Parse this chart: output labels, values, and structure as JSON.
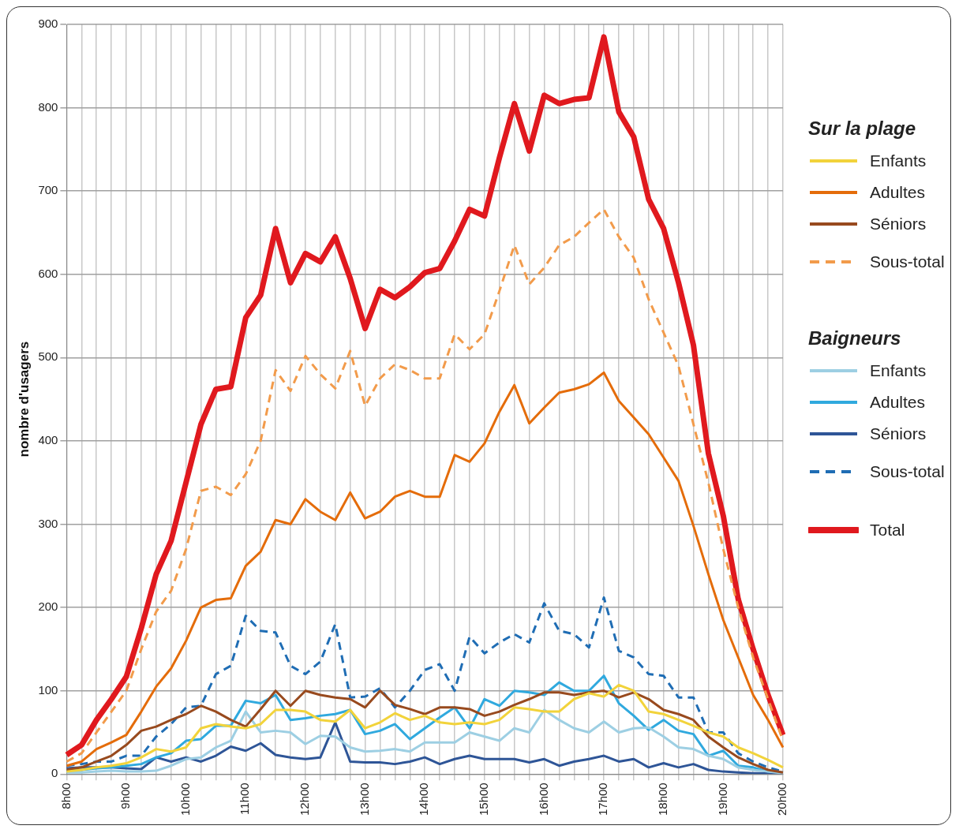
{
  "chart_data": {
    "type": "line",
    "ylabel": "nombre d'usagers",
    "categories": [
      "8h00",
      null,
      null,
      null,
      "9h00",
      null,
      null,
      null,
      "10h00",
      null,
      null,
      null,
      "11h00",
      null,
      null,
      null,
      "12h00",
      null,
      null,
      null,
      "13h00",
      null,
      null,
      null,
      "14h00",
      null,
      null,
      null,
      "15h00",
      null,
      null,
      null,
      "16h00",
      null,
      null,
      null,
      "17h00",
      null,
      null,
      null,
      "18h00",
      null,
      null,
      null,
      "19h00",
      null,
      null,
      null,
      "20h00"
    ],
    "ylim": [
      0,
      900
    ],
    "yticks": [
      0,
      100,
      200,
      300,
      400,
      500,
      600,
      700,
      800,
      900
    ],
    "grid": true,
    "legend": "right",
    "marker": "none",
    "line_style": "solid",
    "annotations": [
      "Sur la plage",
      "Baigneurs"
    ],
    "series": [
      {
        "name": "Enfants",
        "color": "#f2d33b",
        "values": [
          3,
          5,
          8,
          10,
          13,
          20,
          30,
          27,
          32,
          55,
          60,
          57,
          55,
          60,
          77,
          77,
          75,
          65,
          63,
          77,
          55,
          62,
          73,
          65,
          70,
          62,
          60,
          62,
          60,
          65,
          80,
          78,
          75,
          75,
          90,
          97,
          93,
          107,
          100,
          75,
          72,
          65,
          58,
          50,
          45,
          32,
          25,
          17,
          8
        ]
      },
      {
        "name": "Adultes",
        "color": "#e46c0a",
        "values": [
          10,
          15,
          30,
          38,
          47,
          75,
          105,
          127,
          160,
          200,
          209,
          211,
          250,
          267,
          305,
          300,
          330,
          315,
          305,
          338,
          307,
          315,
          333,
          340,
          333,
          333,
          383,
          375,
          397,
          435,
          467,
          421,
          440,
          458,
          462,
          468,
          482,
          448,
          428,
          408,
          380,
          352,
          298,
          240,
          185,
          140,
          95,
          65,
          32
        ]
      },
      {
        "name": "Séniors",
        "color": "#984a1e",
        "values": [
          5,
          8,
          15,
          22,
          35,
          52,
          57,
          65,
          72,
          82,
          75,
          65,
          57,
          78,
          100,
          82,
          100,
          95,
          92,
          90,
          80,
          100,
          83,
          78,
          72,
          80,
          80,
          78,
          70,
          75,
          83,
          90,
          98,
          98,
          95,
          98,
          100,
          92,
          98,
          90,
          77,
          72,
          65,
          45,
          32,
          20,
          12,
          5,
          2
        ]
      },
      {
        "name": "Sous-total",
        "color": "#f29b4b",
        "line_style": "dashed",
        "values": [
          15,
          25,
          50,
          75,
          100,
          150,
          195,
          220,
          270,
          340,
          345,
          335,
          360,
          400,
          485,
          460,
          502,
          480,
          463,
          508,
          442,
          475,
          492,
          485,
          475,
          475,
          528,
          510,
          528,
          580,
          635,
          588,
          608,
          635,
          645,
          662,
          678,
          645,
          620,
          570,
          530,
          490,
          420,
          350,
          270,
          200,
          140,
          90,
          40
        ]
      },
      {
        "name": "Enfants",
        "color": "#9dcfe3",
        "values": [
          2,
          2,
          3,
          4,
          3,
          3,
          4,
          10,
          18,
          20,
          32,
          40,
          75,
          50,
          52,
          50,
          36,
          46,
          45,
          32,
          27,
          28,
          30,
          27,
          38,
          38,
          38,
          50,
          45,
          40,
          55,
          50,
          77,
          65,
          55,
          50,
          63,
          50,
          55,
          56,
          45,
          32,
          30,
          22,
          18,
          8,
          5,
          3,
          1
        ]
      },
      {
        "name": "Adultes",
        "color": "#30a9de",
        "values": [
          5,
          5,
          7,
          8,
          10,
          12,
          20,
          25,
          40,
          42,
          58,
          58,
          88,
          85,
          95,
          65,
          67,
          70,
          72,
          77,
          48,
          52,
          60,
          42,
          55,
          68,
          80,
          55,
          90,
          82,
          100,
          98,
          95,
          110,
          100,
          100,
          118,
          85,
          70,
          53,
          65,
          52,
          48,
          22,
          28,
          10,
          8,
          3,
          2
        ]
      },
      {
        "name": "Séniors",
        "color": "#2e5597",
        "values": [
          7,
          8,
          8,
          8,
          7,
          6,
          20,
          15,
          20,
          15,
          22,
          33,
          28,
          37,
          23,
          20,
          18,
          20,
          62,
          15,
          14,
          14,
          12,
          15,
          20,
          12,
          18,
          22,
          18,
          18,
          18,
          14,
          18,
          10,
          15,
          18,
          22,
          15,
          18,
          8,
          13,
          8,
          12,
          5,
          3,
          2,
          1,
          1,
          1
        ]
      },
      {
        "name": "Sous-total",
        "color": "#1f6db4",
        "line_style": "dashed",
        "values": [
          10,
          12,
          15,
          15,
          22,
          22,
          45,
          60,
          80,
          82,
          120,
          130,
          190,
          172,
          170,
          130,
          120,
          135,
          180,
          92,
          93,
          103,
          80,
          100,
          125,
          132,
          100,
          165,
          145,
          158,
          168,
          158,
          205,
          172,
          168,
          152,
          212,
          148,
          140,
          120,
          118,
          92,
          92,
          50,
          50,
          25,
          15,
          8,
          3
        ]
      },
      {
        "name": "Total",
        "color": "#e0191e",
        "values": [
          23,
          35,
          65,
          90,
          117,
          175,
          240,
          280,
          350,
          420,
          462,
          465,
          548,
          575,
          655,
          590,
          625,
          615,
          645,
          595,
          535,
          582,
          572,
          585,
          602,
          607,
          640,
          678,
          670,
          740,
          805,
          748,
          815,
          805,
          810,
          812,
          885,
          795,
          765,
          690,
          655,
          590,
          515,
          385,
          310,
          210,
          150,
          95,
          47
        ]
      }
    ]
  }
}
